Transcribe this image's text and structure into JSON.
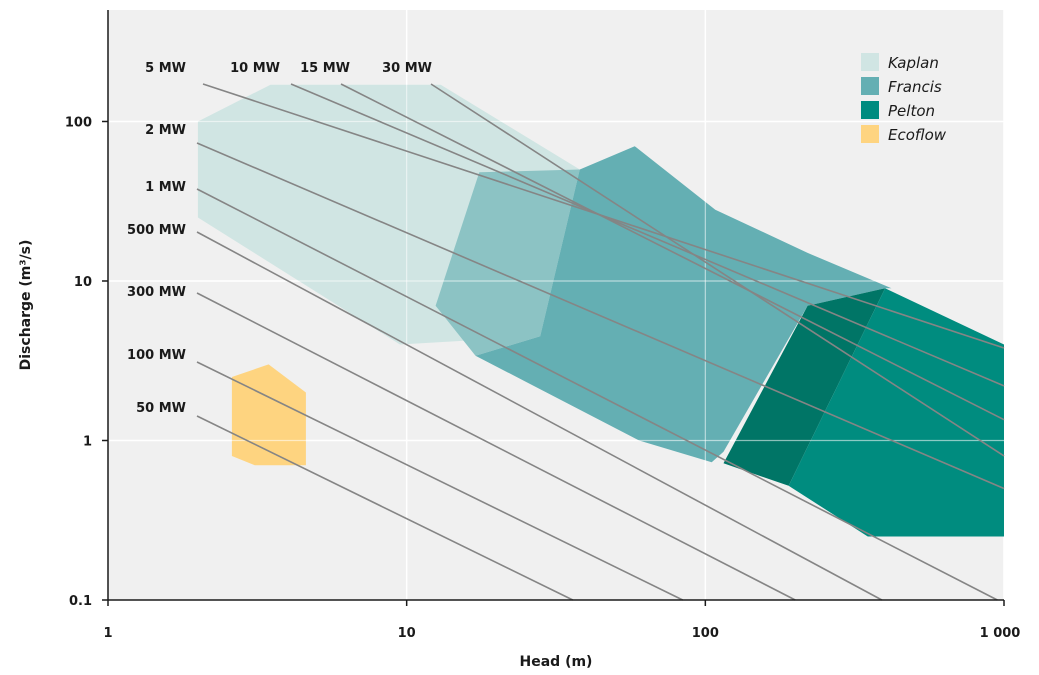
{
  "chart_data": {
    "type": "area",
    "xlabel": "Head (m)",
    "ylabel": "Discharge (m³/s)",
    "x_scale": "log",
    "y_scale": "log",
    "xlim": [
      1,
      1000
    ],
    "ylim": [
      0.1,
      500
    ],
    "x_ticks": [
      {
        "value": 1,
        "label": "1"
      },
      {
        "value": 10,
        "label": "10"
      },
      {
        "value": 100,
        "label": "100"
      },
      {
        "value": 1000,
        "label": "1 000"
      }
    ],
    "y_ticks": [
      {
        "value": 0.1,
        "label": "0.1"
      },
      {
        "value": 1,
        "label": "1"
      },
      {
        "value": 10,
        "label": "10"
      },
      {
        "value": 100,
        "label": "100"
      }
    ],
    "grid": true,
    "legend_position": "top-right",
    "legend": [
      {
        "name": "Kaplan",
        "color": "#d0e5e3"
      },
      {
        "name": "Francis",
        "color": "#64afb3"
      },
      {
        "name": "Pelton",
        "color": "#008c7f"
      },
      {
        "name": "Ecoflow",
        "color": "#fed480"
      }
    ],
    "regions": [
      {
        "name": "Kaplan",
        "color": "#d0e5e3",
        "points": [
          [
            2,
            100
          ],
          [
            3.5,
            170
          ],
          [
            13,
            170
          ],
          [
            38,
            50
          ],
          [
            28,
            4.5
          ],
          [
            9.5,
            4
          ],
          [
            2,
            25
          ]
        ]
      },
      {
        "name": "Kaplan-Francis overlap",
        "color": "#8cc3c4",
        "points": [
          [
            17.5,
            48
          ],
          [
            38,
            50
          ],
          [
            28,
            4.5
          ],
          [
            17,
            3.4
          ],
          [
            12.5,
            7
          ]
        ]
      },
      {
        "name": "Francis",
        "color": "#64afb3",
        "points": [
          [
            38,
            50
          ],
          [
            58,
            70
          ],
          [
            108,
            28
          ],
          [
            220,
            15
          ],
          [
            420,
            9
          ],
          [
            400,
            9
          ],
          [
            220,
            7
          ],
          [
            115,
            0.85
          ],
          [
            105,
            0.73
          ],
          [
            60,
            1
          ],
          [
            17,
            3.4
          ],
          [
            28,
            4.5
          ]
        ]
      },
      {
        "name": "Francis-Pelton overlap",
        "color": "#007566",
        "points": [
          [
            220,
            7
          ],
          [
            400,
            9
          ],
          [
            190,
            0.52
          ],
          [
            115,
            0.72
          ]
        ]
      },
      {
        "name": "Pelton",
        "color": "#008c7f",
        "points": [
          [
            400,
            9
          ],
          [
            1000,
            4
          ],
          [
            1000,
            0.25
          ],
          [
            350,
            0.25
          ],
          [
            190,
            0.52
          ]
        ]
      },
      {
        "name": "Ecoflow",
        "color": "#fed480",
        "points": [
          [
            2.6,
            2.5
          ],
          [
            3.45,
            3
          ],
          [
            4.6,
            2
          ],
          [
            4.6,
            0.7
          ],
          [
            3.1,
            0.7
          ],
          [
            2.6,
            0.8
          ]
        ]
      }
    ],
    "power_lines": [
      {
        "label": "5 MW",
        "from": [
          2.6,
          300
        ],
        "to": [
          1000,
          3.8
        ]
      },
      {
        "label": "10 MW",
        "from": [
          3.0,
          300
        ],
        "to": [
          1000,
          2.2
        ]
      },
      {
        "label": "15 MW",
        "from": [
          4.35,
          300
        ],
        "to": [
          1000,
          1.35
        ]
      },
      {
        "label": "30 MW",
        "from": [
          8.6,
          300
        ],
        "to": [
          1000,
          0.8
        ]
      },
      {
        "label": "2 MW",
        "from": [
          2.6,
          300
        ],
        "to": [
          1000,
          0.5
        ]
      },
      {
        "label": "1 MW",
        "from": [
          2.6,
          300
        ],
        "to": [
          950,
          0.1
        ]
      },
      {
        "label": "500 MW",
        "from": [
          2.6,
          300
        ],
        "to": [
          390,
          0.1
        ]
      },
      {
        "label": "300 MW",
        "from": [
          2.6,
          300
        ],
        "to": [
          200,
          0.1
        ]
      },
      {
        "label": "100 MW",
        "from": [
          2.6,
          300
        ],
        "to": [
          84,
          0.1
        ]
      },
      {
        "label": "50 MW",
        "from": [
          2.6,
          300
        ],
        "to": [
          36,
          0.1
        ]
      }
    ]
  }
}
